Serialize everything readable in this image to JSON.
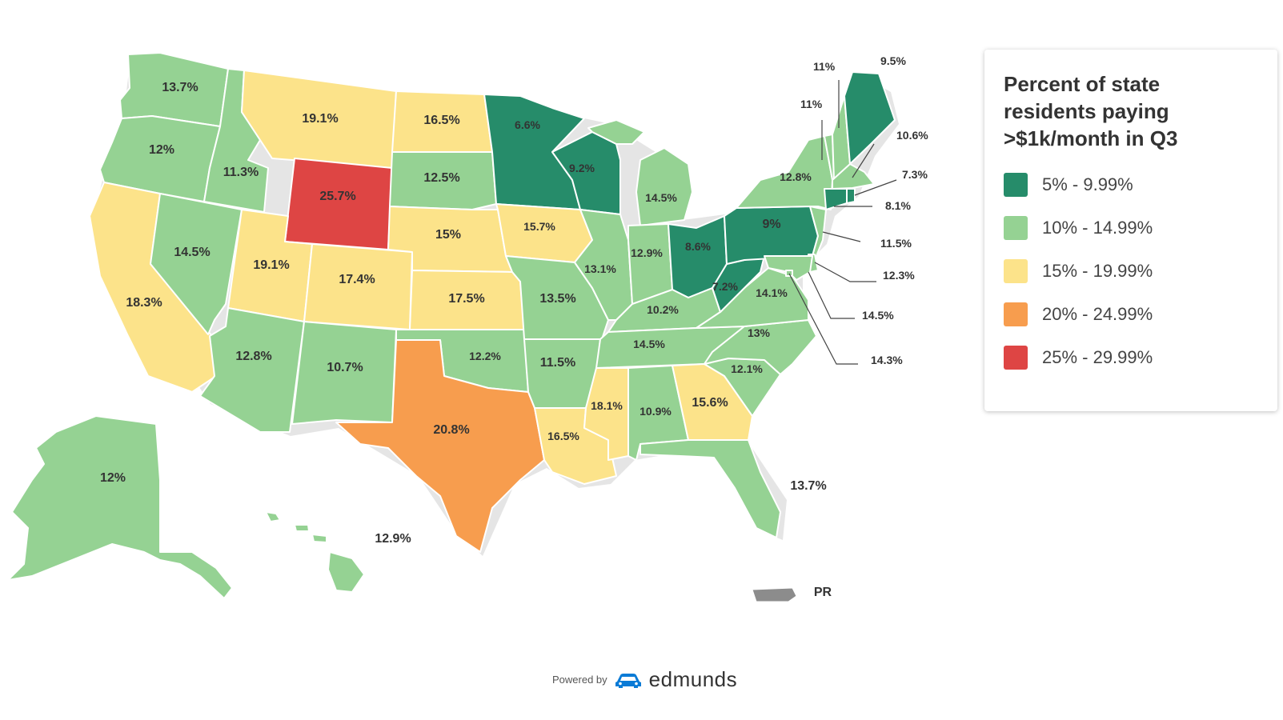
{
  "legend": {
    "title": "Percent of state residents paying >$1k/month in Q3",
    "items": [
      {
        "label": "5% - 9.99%",
        "color": "#268c6a"
      },
      {
        "label": "10% - 14.99%",
        "color": "#95d293"
      },
      {
        "label": "15% - 19.99%",
        "color": "#fce38a"
      },
      {
        "label": "20% - 24.99%",
        "color": "#f79d4e"
      },
      {
        "label": "25% - 29.99%",
        "color": "#de4544"
      }
    ]
  },
  "states": [
    {
      "id": "WA",
      "value": "13.7%",
      "bin": 1
    },
    {
      "id": "OR",
      "value": "12%",
      "bin": 1
    },
    {
      "id": "CA",
      "value": "18.3%",
      "bin": 2
    },
    {
      "id": "ID",
      "value": "11.3%",
      "bin": 1
    },
    {
      "id": "NV",
      "value": "14.5%",
      "bin": 1
    },
    {
      "id": "MT",
      "value": "19.1%",
      "bin": 2
    },
    {
      "id": "WY",
      "value": "25.7%",
      "bin": 4
    },
    {
      "id": "UT",
      "value": "19.1%",
      "bin": 2
    },
    {
      "id": "CO",
      "value": "17.4%",
      "bin": 2
    },
    {
      "id": "AZ",
      "value": "12.8%",
      "bin": 1
    },
    {
      "id": "NM",
      "value": "10.7%",
      "bin": 1
    },
    {
      "id": "ND",
      "value": "16.5%",
      "bin": 2
    },
    {
      "id": "SD",
      "value": "12.5%",
      "bin": 1
    },
    {
      "id": "NE",
      "value": "15%",
      "bin": 2
    },
    {
      "id": "KS",
      "value": "17.5%",
      "bin": 2
    },
    {
      "id": "OK",
      "value": "12.2%",
      "bin": 1
    },
    {
      "id": "TX",
      "value": "20.8%",
      "bin": 3
    },
    {
      "id": "MN",
      "value": "6.6%",
      "bin": 0
    },
    {
      "id": "IA",
      "value": "15.7%",
      "bin": 2
    },
    {
      "id": "MO",
      "value": "13.5%",
      "bin": 1
    },
    {
      "id": "AR",
      "value": "11.5%",
      "bin": 1
    },
    {
      "id": "LA",
      "value": "16.5%",
      "bin": 2
    },
    {
      "id": "WI",
      "value": "9.2%",
      "bin": 0
    },
    {
      "id": "IL",
      "value": "13.1%",
      "bin": 1
    },
    {
      "id": "MI",
      "value": "14.5%",
      "bin": 1
    },
    {
      "id": "IN",
      "value": "12.9%",
      "bin": 1
    },
    {
      "id": "OH",
      "value": "8.6%",
      "bin": 0
    },
    {
      "id": "KY",
      "value": "10.2%",
      "bin": 1
    },
    {
      "id": "TN",
      "value": "14.5%",
      "bin": 1
    },
    {
      "id": "MS",
      "value": "18.1%",
      "bin": 2
    },
    {
      "id": "AL",
      "value": "10.9%",
      "bin": 1
    },
    {
      "id": "GA",
      "value": "15.6%",
      "bin": 2
    },
    {
      "id": "FL",
      "value": "13.7%",
      "bin": 1
    },
    {
      "id": "SC",
      "value": "12.1%",
      "bin": 1
    },
    {
      "id": "NC",
      "value": "13%",
      "bin": 1
    },
    {
      "id": "VA",
      "value": "14.1%",
      "bin": 1
    },
    {
      "id": "WV",
      "value": "7.2%",
      "bin": 0
    },
    {
      "id": "PA",
      "value": "9%",
      "bin": 0
    },
    {
      "id": "NY",
      "value": "12.8%",
      "bin": 1
    },
    {
      "id": "VT",
      "value": "11%",
      "bin": 1
    },
    {
      "id": "NH",
      "value": "11%",
      "bin": 1
    },
    {
      "id": "ME",
      "value": "9.5%",
      "bin": 0
    },
    {
      "id": "MA",
      "value": "10.6%",
      "bin": 1
    },
    {
      "id": "RI",
      "value": "7.3%",
      "bin": 0
    },
    {
      "id": "CT",
      "value": "8.1%",
      "bin": 0
    },
    {
      "id": "NJ",
      "value": "11.5%",
      "bin": 1
    },
    {
      "id": "DE",
      "value": "12.3%",
      "bin": 1
    },
    {
      "id": "MD",
      "value": "14.5%",
      "bin": 1
    },
    {
      "id": "DC",
      "value": "14.3%",
      "bin": 1
    },
    {
      "id": "AK",
      "value": "12%",
      "bin": 1
    },
    {
      "id": "HI",
      "value": "12.9%",
      "bin": 1
    }
  ],
  "territories": {
    "pr_label": "PR",
    "pr_color": "#8c8c8c"
  },
  "footer": {
    "powered_by": "Powered by",
    "brand": "edmunds",
    "brand_color": "#0b7bd6"
  }
}
